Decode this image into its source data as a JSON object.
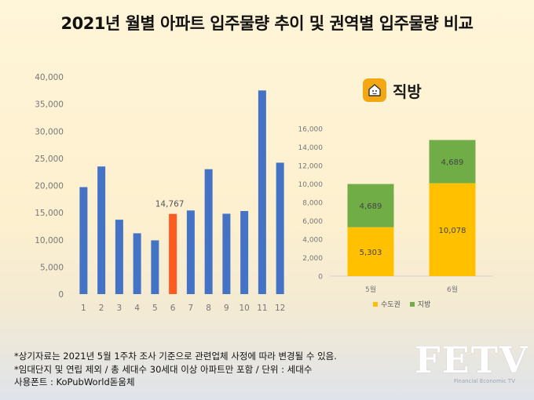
{
  "title": "2021년 월별 아파트 입주물량 추이 및 권역별 입주물량 비교",
  "brand": {
    "name": "직방",
    "icon": "house-logo-icon"
  },
  "colors": {
    "bar": "#4472c4",
    "highlight": "#ff5a1f",
    "capital": "#ffc000",
    "regional": "#70ad47"
  },
  "chart_data": [
    {
      "type": "bar",
      "title": "",
      "xlabel": "",
      "ylabel": "",
      "categories": [
        "1",
        "2",
        "3",
        "4",
        "5",
        "6",
        "7",
        "8",
        "9",
        "10",
        "11",
        "12"
      ],
      "values": [
        19700,
        23500,
        13700,
        11200,
        9900,
        14767,
        15400,
        23000,
        14800,
        15300,
        37500,
        24200
      ],
      "highlight_index": 5,
      "data_labels": [
        {
          "index": 5,
          "text": "14,767"
        }
      ],
      "yticks": [
        "0",
        "5,000",
        "10,000",
        "15,000",
        "20,000",
        "25,000",
        "30,000",
        "35,000",
        "40,000"
      ],
      "ylim": [
        0,
        40000
      ],
      "grid": false
    },
    {
      "type": "bar",
      "stacked": true,
      "title": "",
      "xlabel": "",
      "ylabel": "",
      "categories": [
        "5월",
        "6월"
      ],
      "series": [
        {
          "name": "수도권",
          "values": [
            5303,
            10078
          ],
          "labels": [
            "5,303",
            "10,078"
          ]
        },
        {
          "name": "지방",
          "values": [
            4689,
            4689
          ],
          "labels": [
            "4,689",
            "4,689"
          ]
        }
      ],
      "yticks": [
        "0",
        "2,000",
        "4,000",
        "6,000",
        "8,000",
        "10,000",
        "12,000",
        "14,000",
        "16,000"
      ],
      "ylim": [
        0,
        16000
      ],
      "legend": "bottom",
      "grid": false
    }
  ],
  "notes": [
    "*상기자료는 2021년 5월 1주차 조사 기준으로 관련업체 사정에 따라 변경될 수 있음.",
    "*임대단지 및 연립 제외 / 총 세대수 30세대 이상 아파트만 포함 / 단위 : 세대수",
    "사용폰트 : KoPubWorld돋움체"
  ],
  "logo": {
    "text": "FETV",
    "subtext": "Financial Economic TV"
  }
}
